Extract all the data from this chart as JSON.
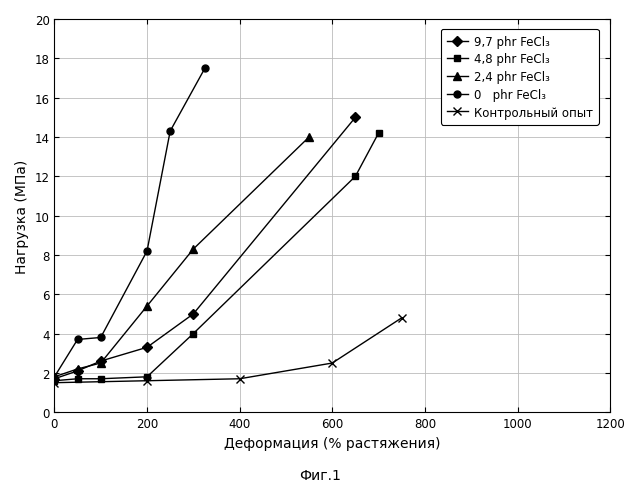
{
  "title": "",
  "xlabel": "Деформация (% растяжения)",
  "ylabel": "Нагрузка (МПа)",
  "caption": "Фиг.1",
  "xlim": [
    0,
    1200
  ],
  "ylim": [
    0,
    20
  ],
  "xticks": [
    0,
    200,
    400,
    600,
    800,
    1000,
    1200
  ],
  "yticks": [
    0,
    2,
    4,
    6,
    8,
    10,
    12,
    14,
    16,
    18,
    20
  ],
  "series": [
    {
      "label": "9,7 phr FeCl₃",
      "marker": "D",
      "markersize": 5,
      "x": [
        0,
        50,
        100,
        200,
        300,
        650
      ],
      "y": [
        1.7,
        2.1,
        2.6,
        3.3,
        5.0,
        15.0
      ]
    },
    {
      "label": "4,8 phr FeCl₃",
      "marker": "s",
      "markersize": 5,
      "x": [
        0,
        50,
        100,
        200,
        300,
        650,
        700
      ],
      "y": [
        1.6,
        1.7,
        1.7,
        1.8,
        4.0,
        12.0,
        14.2
      ]
    },
    {
      "label": "2,4 phr FeCl₃",
      "marker": "^",
      "markersize": 6,
      "x": [
        0,
        50,
        100,
        200,
        300,
        550
      ],
      "y": [
        1.8,
        2.2,
        2.5,
        5.4,
        8.3,
        14.0
      ]
    },
    {
      "label": "0   phr FeCl₃",
      "marker": "o",
      "markersize": 5,
      "x": [
        0,
        50,
        100,
        200,
        250,
        325
      ],
      "y": [
        1.8,
        3.7,
        3.8,
        8.2,
        14.3,
        17.5
      ]
    },
    {
      "label": "Контрольный опыт",
      "marker": "x",
      "markersize": 6,
      "x": [
        0,
        200,
        400,
        600,
        750
      ],
      "y": [
        1.5,
        1.6,
        1.7,
        2.5,
        4.8
      ]
    }
  ],
  "background_color": "#ffffff",
  "grid_color": "#bbbbbb",
  "legend_fontsize": 8.5,
  "axis_fontsize": 10,
  "tick_fontsize": 8.5,
  "linewidth": 1.0
}
